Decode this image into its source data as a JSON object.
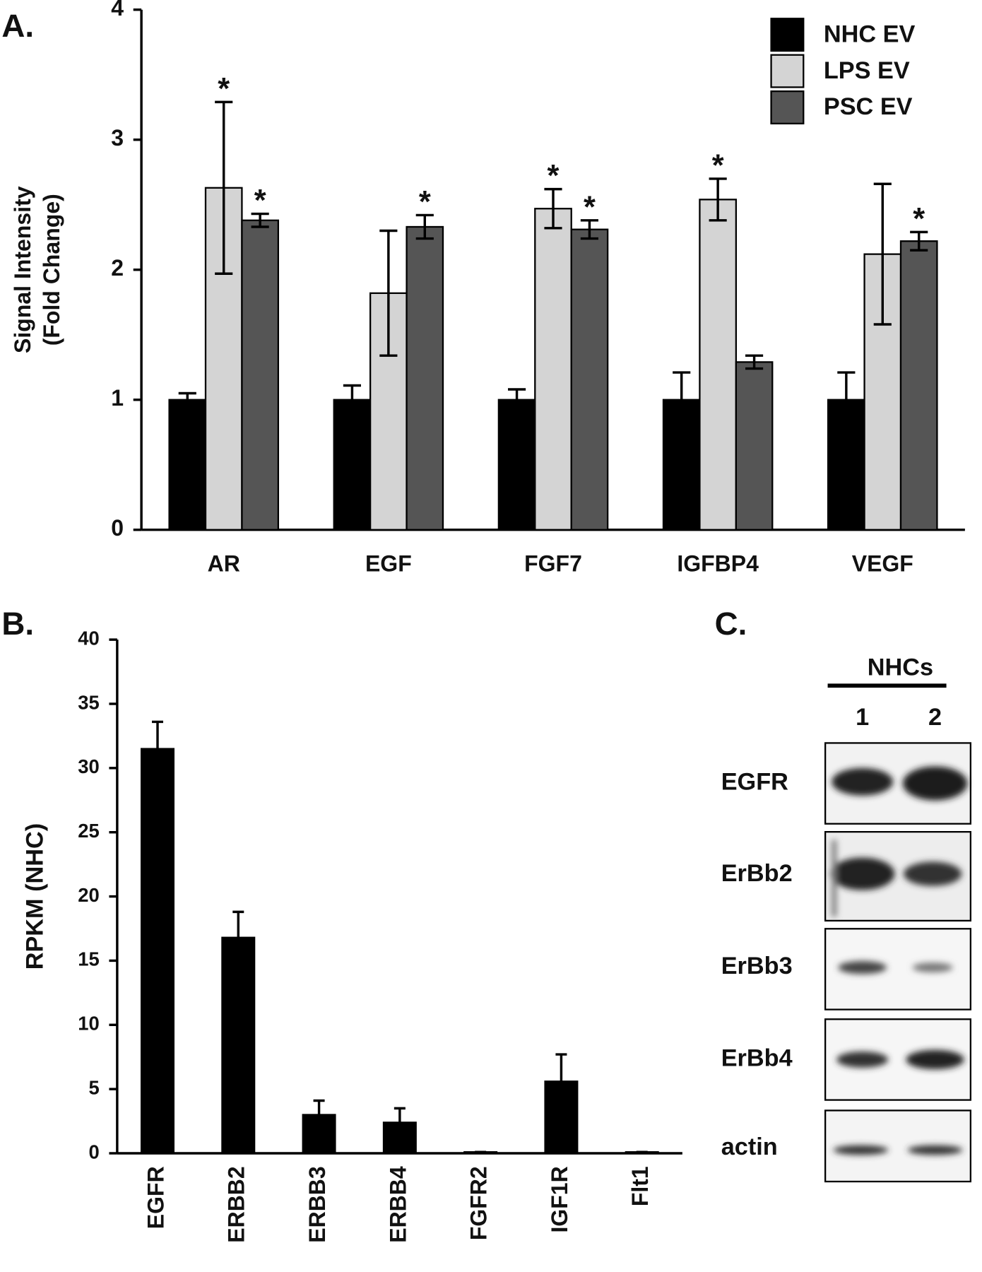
{
  "panels": [
    "A.",
    "B.",
    "C."
  ],
  "chart_data": [
    {
      "type": "bar",
      "categories": [
        "AR",
        "EGF",
        "FGF7",
        "IGFBP4",
        "VEGF"
      ],
      "series": [
        {
          "name": "NHC EV",
          "color": "#000000",
          "values": [
            1.0,
            1.0,
            1.0,
            1.0,
            1.0
          ],
          "errors": [
            0.05,
            0.11,
            0.08,
            0.21,
            0.21
          ]
        },
        {
          "name": "LPS EV",
          "color": "#d4d4d4",
          "values": [
            2.63,
            1.82,
            2.47,
            2.54,
            2.12
          ],
          "errors": [
            0.66,
            0.48,
            0.15,
            0.16,
            0.54
          ]
        },
        {
          "name": "PSC EV",
          "color": "#555555",
          "values": [
            2.38,
            2.33,
            2.31,
            1.29,
            2.22
          ],
          "errors": [
            0.05,
            0.09,
            0.07,
            0.05,
            0.07
          ]
        }
      ],
      "ylabel": [
        "Signal Intensity",
        "(Fold Change)"
      ],
      "ylim": [
        0,
        4
      ],
      "yticks": [
        0,
        1,
        2,
        3,
        4
      ],
      "legend": "upper right",
      "annotations": [
        {
          "text": "*",
          "series": 1,
          "category": 0
        },
        {
          "text": "*",
          "series": 2,
          "category": 0
        },
        {
          "text": "*",
          "series": 2,
          "category": 1
        },
        {
          "text": "*",
          "series": 1,
          "category": 2
        },
        {
          "text": "*",
          "series": 2,
          "category": 2
        },
        {
          "text": "*",
          "series": 1,
          "category": 3
        },
        {
          "text": "*",
          "series": 2,
          "category": 4
        }
      ]
    },
    {
      "type": "bar",
      "categories": [
        "EGFR",
        "ERBB2",
        "ERBB3",
        "ERBB4",
        "FGFR2",
        "IGF1R",
        "Flt1"
      ],
      "values": [
        31.5,
        16.8,
        3.0,
        2.4,
        0.1,
        5.6,
        0.1
      ],
      "errors": [
        2.1,
        2.0,
        1.1,
        1.1,
        0,
        2.1,
        0
      ],
      "color": "#000000",
      "ylabel": "RPKM (NHC)",
      "ylim": [
        0,
        40
      ],
      "yticks": [
        0,
        5,
        10,
        15,
        20,
        25,
        30,
        35,
        40
      ]
    }
  ],
  "blot": {
    "header": "NHCs",
    "lanes": [
      "1",
      "2"
    ],
    "rows": [
      "EGFR",
      "ErBb2",
      "ErBb3",
      "ErBb4",
      "actin"
    ]
  }
}
